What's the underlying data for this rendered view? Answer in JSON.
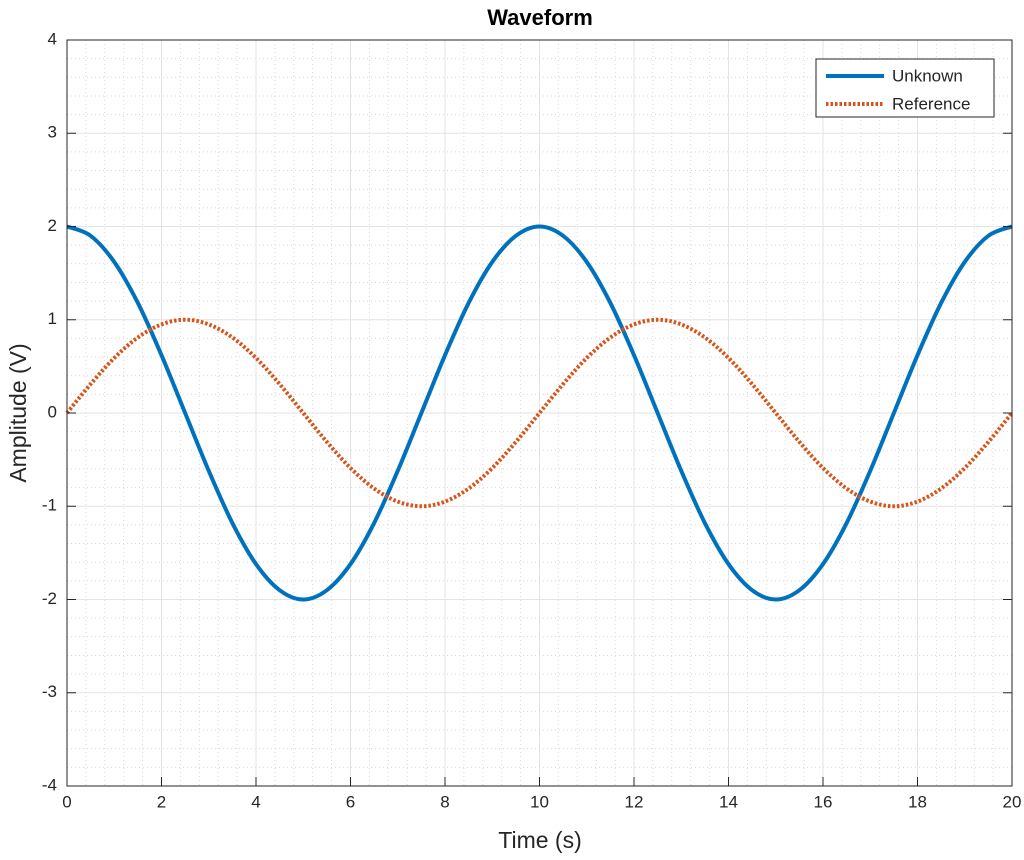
{
  "chart_data": {
    "type": "line",
    "title": "Waveform",
    "x_label": "Time (s)",
    "y_label": "Amplitude (V)",
    "x": [
      0,
      0.5,
      1,
      1.5,
      2,
      2.5,
      3,
      3.5,
      4,
      4.5,
      5,
      5.5,
      6,
      6.5,
      7,
      7.5,
      8,
      8.5,
      9,
      9.5,
      10,
      10.5,
      11,
      11.5,
      12,
      12.5,
      13,
      13.5,
      14,
      14.5,
      15,
      15.5,
      16,
      16.5,
      17,
      17.5,
      18,
      18.5,
      19,
      19.5,
      20
    ],
    "series": [
      {
        "name": "Unknown",
        "color": "#0072bd",
        "style": "solid",
        "values": [
          2,
          1.9,
          1.62,
          1.18,
          0.62,
          0,
          -0.62,
          -1.18,
          -1.62,
          -1.9,
          -2,
          -1.9,
          -1.62,
          -1.18,
          -0.62,
          0,
          0.62,
          1.18,
          1.62,
          1.9,
          2,
          1.9,
          1.62,
          1.18,
          0.62,
          0,
          -0.62,
          -1.18,
          -1.62,
          -1.9,
          -2,
          -1.9,
          -1.62,
          -1.18,
          -0.62,
          0,
          0.62,
          1.18,
          1.62,
          1.9,
          2
        ]
      },
      {
        "name": "Reference",
        "color": "#d95319",
        "style": "dotted",
        "values": [
          0,
          0.31,
          0.59,
          0.81,
          0.95,
          1,
          0.95,
          0.81,
          0.59,
          0.31,
          0,
          -0.31,
          -0.59,
          -0.81,
          -0.95,
          -1,
          -0.95,
          -0.81,
          -0.59,
          -0.31,
          0,
          0.31,
          0.59,
          0.81,
          0.95,
          1,
          0.95,
          0.81,
          0.59,
          0.31,
          0,
          -0.31,
          -0.59,
          -0.81,
          -0.95,
          -1,
          -0.95,
          -0.81,
          -0.59,
          -0.31,
          0
        ]
      }
    ],
    "xlim": [
      0,
      20
    ],
    "xticks": [
      0,
      2,
      4,
      6,
      8,
      10,
      12,
      14,
      16,
      18,
      20
    ],
    "ylim": [
      -4,
      4
    ],
    "yticks": [
      -4,
      -3,
      -2,
      -1,
      0,
      1,
      2,
      3,
      4
    ],
    "grid": true,
    "minor_grid": true,
    "legend": "top-right"
  }
}
